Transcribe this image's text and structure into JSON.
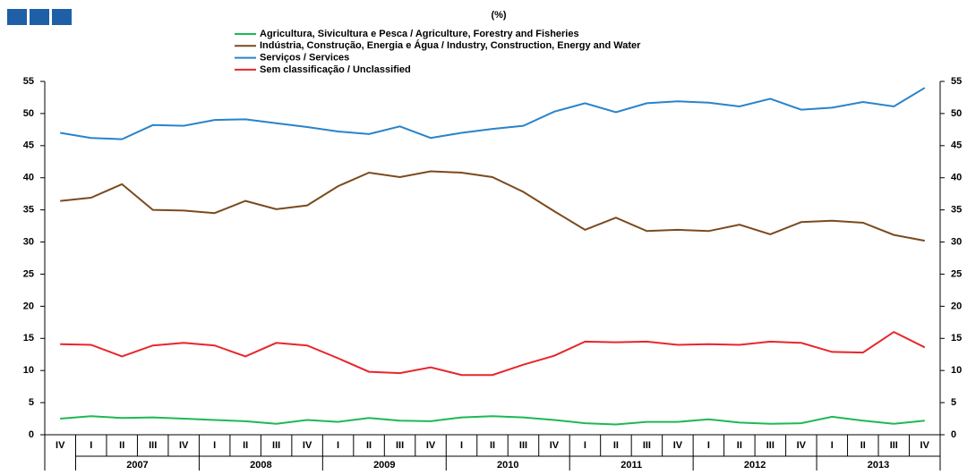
{
  "chart_data": {
    "type": "line",
    "title": "(%)",
    "categories": [
      "IV",
      "I",
      "II",
      "III",
      "IV",
      "I",
      "II",
      "III",
      "IV",
      "I",
      "II",
      "III",
      "IV",
      "I",
      "II",
      "III",
      "IV",
      "I",
      "II",
      "III",
      "IV",
      "I",
      "II",
      "III",
      "IV",
      "I",
      "II",
      "III",
      "IV"
    ],
    "years": [
      "2007",
      "2008",
      "2009",
      "2010",
      "2011",
      "2012",
      "2013"
    ],
    "series": [
      {
        "name": "Agricultura, Sivicultura e Pesca / Agriculture, Forestry and Fisheries",
        "color": "#1db954",
        "values": [
          2.5,
          2.9,
          2.6,
          2.7,
          2.5,
          2.3,
          2.1,
          1.7,
          2.3,
          2.0,
          2.6,
          2.2,
          2.1,
          2.7,
          2.9,
          2.7,
          2.3,
          1.8,
          1.6,
          2.0,
          2.0,
          2.4,
          1.9,
          1.7,
          1.8,
          2.8,
          2.2,
          1.7,
          2.2
        ]
      },
      {
        "name": "Indústria, Construção, Energia e Água / Industry, Construction, Energy and Water",
        "color": "#7b4a1e",
        "values": [
          36.4,
          36.9,
          39.0,
          35.0,
          34.9,
          34.5,
          36.4,
          35.1,
          35.7,
          38.7,
          40.8,
          40.1,
          41.0,
          40.8,
          40.1,
          37.8,
          34.8,
          31.9,
          33.8,
          31.7,
          31.9,
          31.7,
          32.7,
          31.2,
          33.1,
          33.3,
          33.0,
          31.1,
          30.2
        ]
      },
      {
        "name": "Serviços / Services",
        "color": "#2a83c9",
        "values": [
          47.0,
          46.2,
          46.0,
          48.2,
          48.1,
          49.0,
          49.1,
          48.5,
          47.9,
          47.2,
          46.8,
          48.0,
          46.2,
          47.0,
          47.6,
          48.1,
          50.3,
          51.6,
          50.2,
          51.6,
          51.9,
          51.7,
          51.1,
          52.3,
          50.6,
          50.9,
          51.8,
          51.1,
          54.0
        ]
      },
      {
        "name": "Sem classificação / Unclassified",
        "color": "#e8262a",
        "values": [
          14.1,
          14.0,
          12.2,
          13.9,
          14.3,
          13.9,
          12.2,
          14.3,
          13.9,
          11.9,
          9.8,
          9.6,
          10.5,
          9.3,
          9.3,
          10.9,
          12.3,
          14.5,
          14.4,
          14.5,
          14.0,
          14.1,
          14.0,
          14.5,
          14.3,
          12.9,
          12.8,
          16.0,
          13.6
        ]
      }
    ],
    "ylim": [
      0,
      55
    ],
    "yticks": [
      0,
      5,
      10,
      15,
      20,
      25,
      30,
      35,
      40,
      45,
      50,
      55
    ],
    "y2lim": [
      0,
      55
    ],
    "y2ticks": [
      0,
      5,
      10,
      15,
      20,
      25,
      30,
      35,
      40,
      45,
      50,
      55
    ]
  }
}
